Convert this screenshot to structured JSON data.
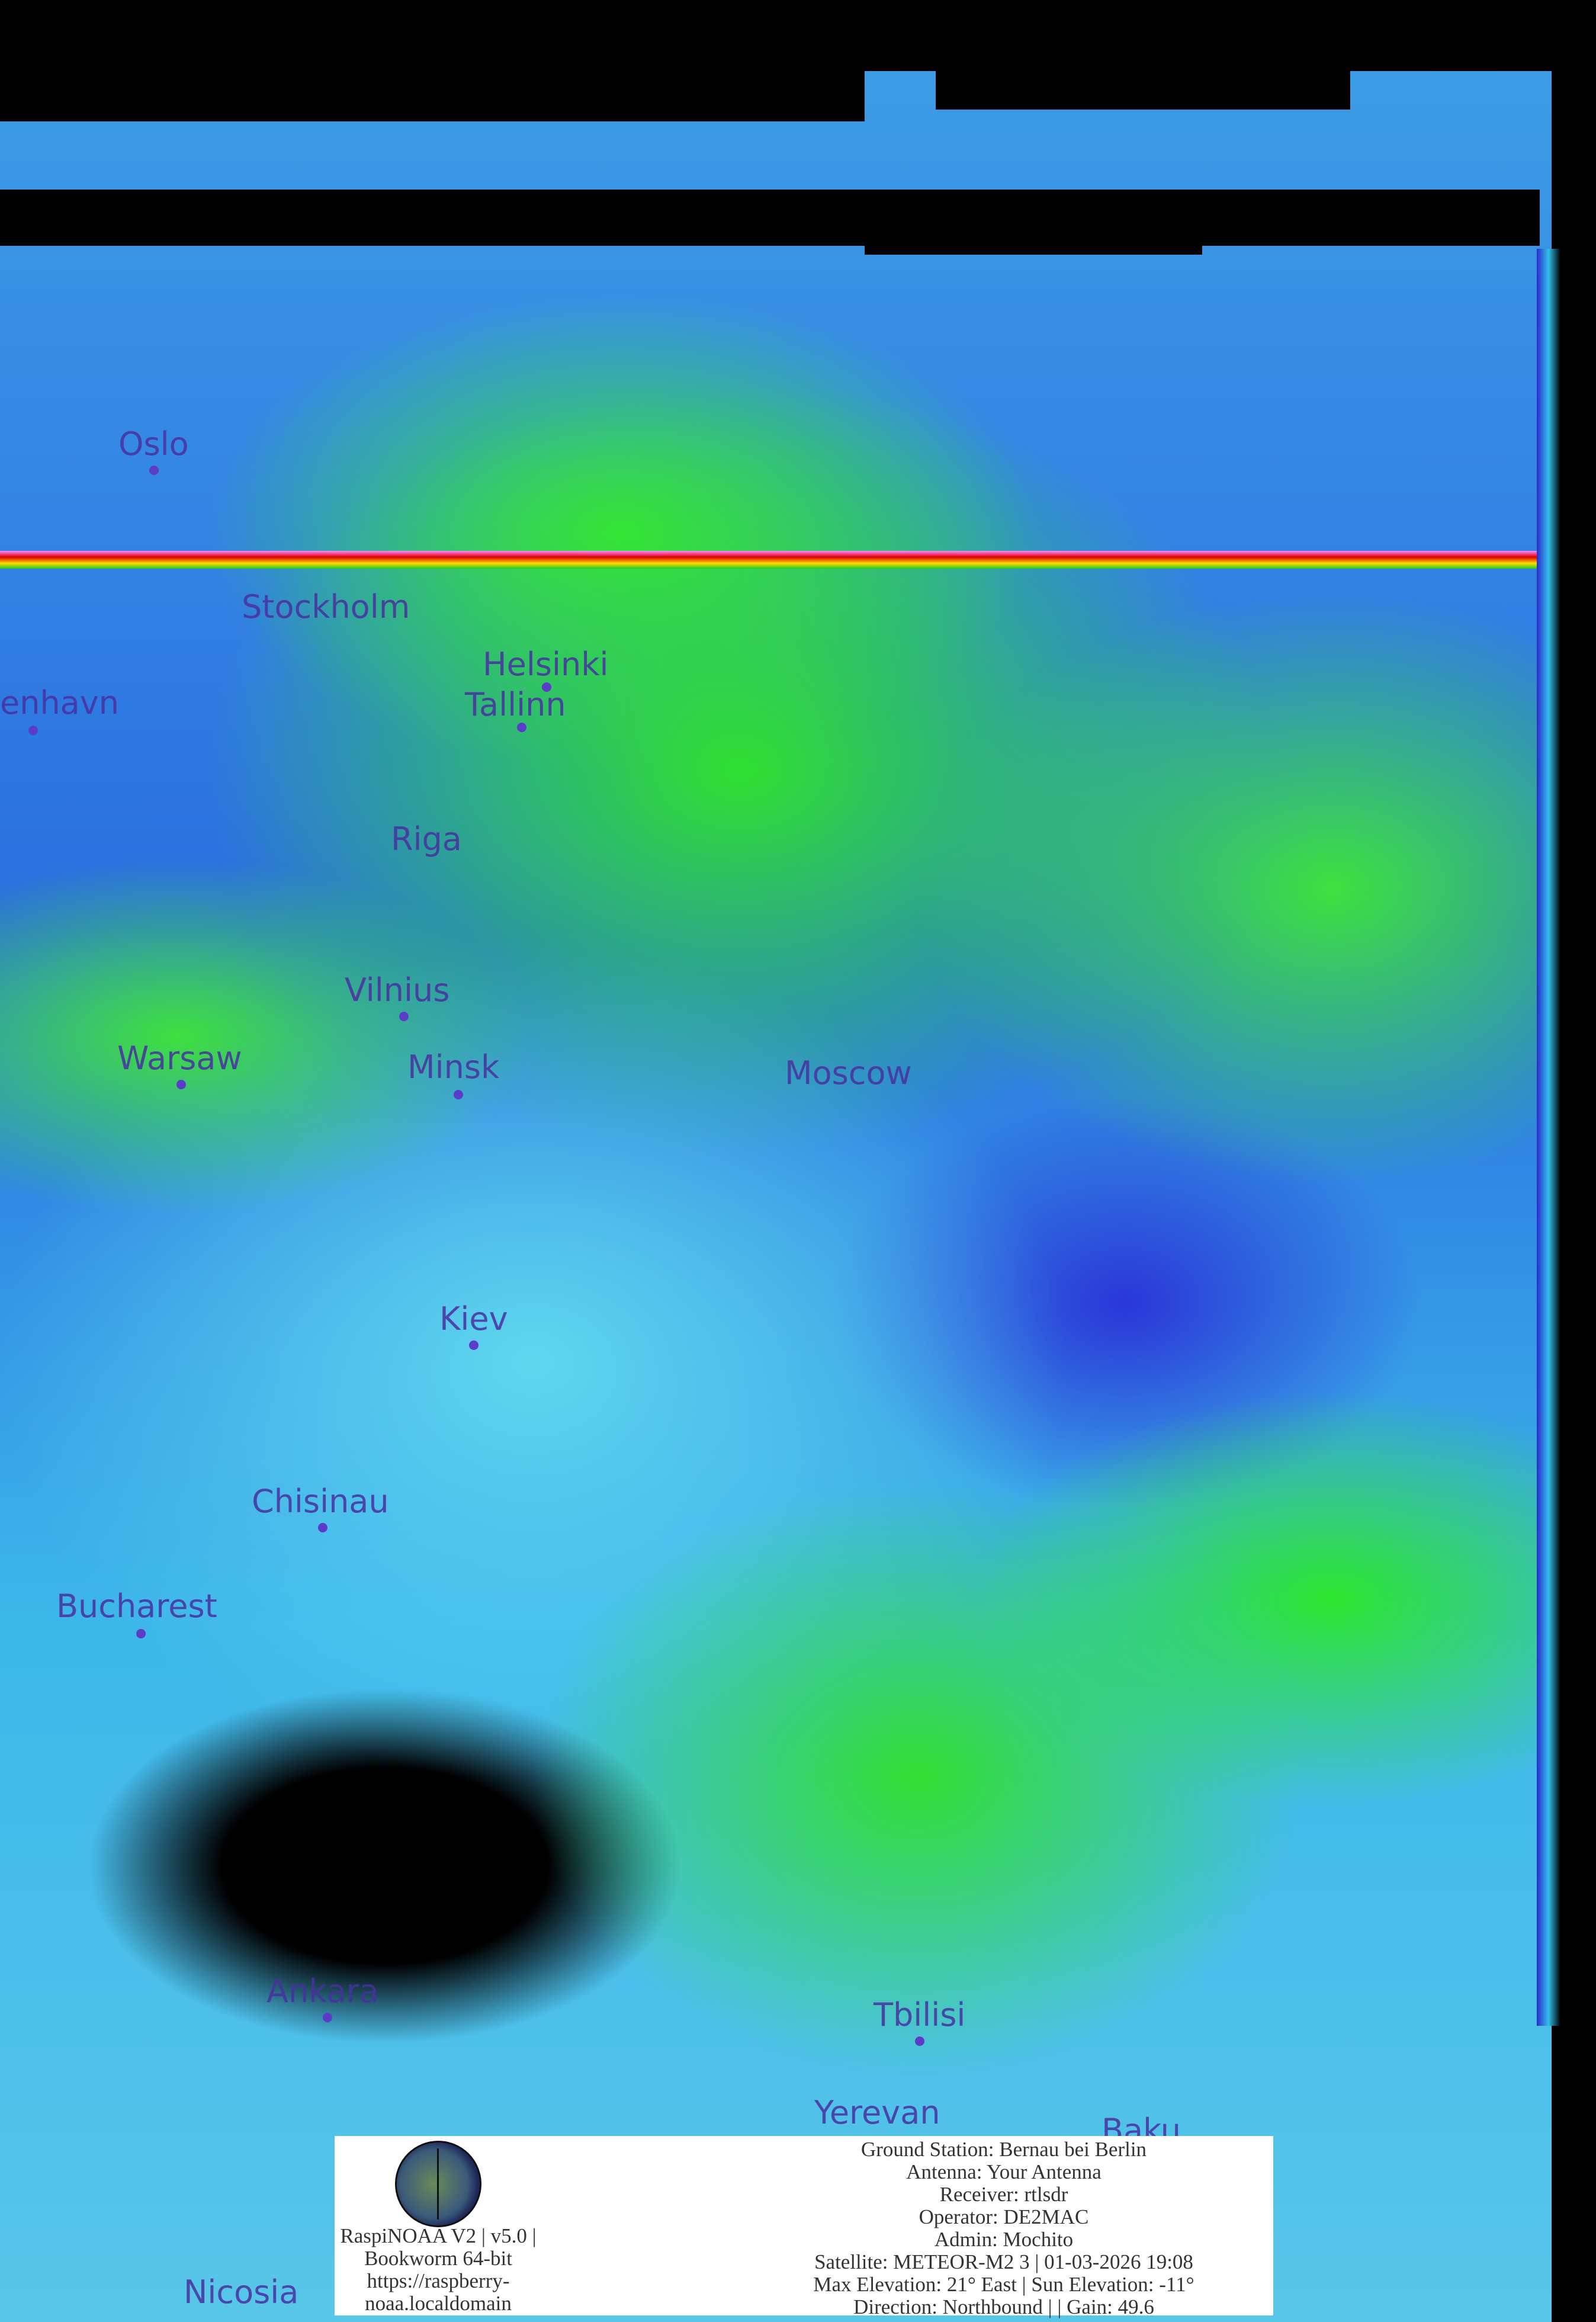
{
  "image": {
    "type": "satellite false-color image",
    "palette": {
      "cloud_green": "#33e033",
      "cold_blue": "#2a36d8",
      "cyan": "#5fd6ee",
      "borders": "#ffff33",
      "coast": "#cfe8e0",
      "label": "#4830a0"
    }
  },
  "cities": [
    {
      "name": "Oslo"
    },
    {
      "name": "Stockholm"
    },
    {
      "name": "enhavn"
    },
    {
      "name": "Helsinki"
    },
    {
      "name": "Tallinn"
    },
    {
      "name": "Riga"
    },
    {
      "name": "Vilnius"
    },
    {
      "name": "Warsaw"
    },
    {
      "name": "Minsk"
    },
    {
      "name": "Moscow"
    },
    {
      "name": "Kiev"
    },
    {
      "name": "Chisinau"
    },
    {
      "name": "Bucharest"
    },
    {
      "name": "Ankara"
    },
    {
      "name": "Tbilisi"
    },
    {
      "name": "Yerevan"
    },
    {
      "name": "Baku"
    },
    {
      "name": "Nicosia"
    }
  ],
  "footer": {
    "logo_icon": "raspinoaa-logo",
    "left_lines": [
      "RaspiNOAA V2 | v5.0 |",
      "Bookworm 64-bit",
      "https://raspberry-",
      "noaa.localdomain"
    ],
    "right_lines": [
      "Ground Station: Bernau bei Berlin",
      "Antenna: Your Antenna",
      "Receiver: rtlsdr",
      "Operator: DE2MAC",
      "Admin: Mochito",
      "Satellite: METEOR-M2 3 | 01-03-2026 19:08",
      "Max Elevation: 21° East | Sun Elevation: -11°",
      "Direction: Northbound | | Gain: 49.6"
    ]
  }
}
